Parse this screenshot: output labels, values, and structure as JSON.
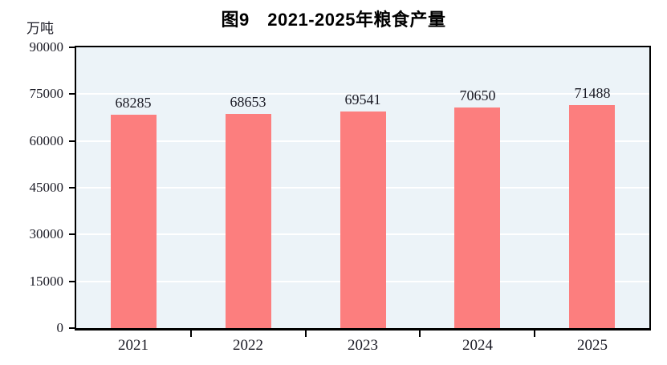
{
  "figure": {
    "title": "图9　2021-2025年粮食产量",
    "unit_label": "万吨"
  },
  "chart_data": {
    "type": "bar",
    "title": "图9　2021-2025年粮食产量",
    "xlabel": "",
    "ylabel": "万吨",
    "categories": [
      "2021",
      "2022",
      "2023",
      "2024",
      "2025"
    ],
    "values": [
      68285,
      68653,
      69541,
      70650,
      71488
    ],
    "ylim": [
      0,
      90000
    ],
    "ytick_interval": 15000,
    "yticks": [
      0,
      15000,
      30000,
      45000,
      60000,
      75000,
      90000
    ],
    "grid": "horizontal white gridlines",
    "legend": "none",
    "data_labels": true,
    "bar_width_ratio": 0.4,
    "colors": {
      "bar": "#fc7e7e",
      "plot_background": "#ecf3f8",
      "grid_line": "#ffffff",
      "axis_line": "#000000",
      "text": "#1a1a24",
      "title_text": "#000000"
    }
  }
}
